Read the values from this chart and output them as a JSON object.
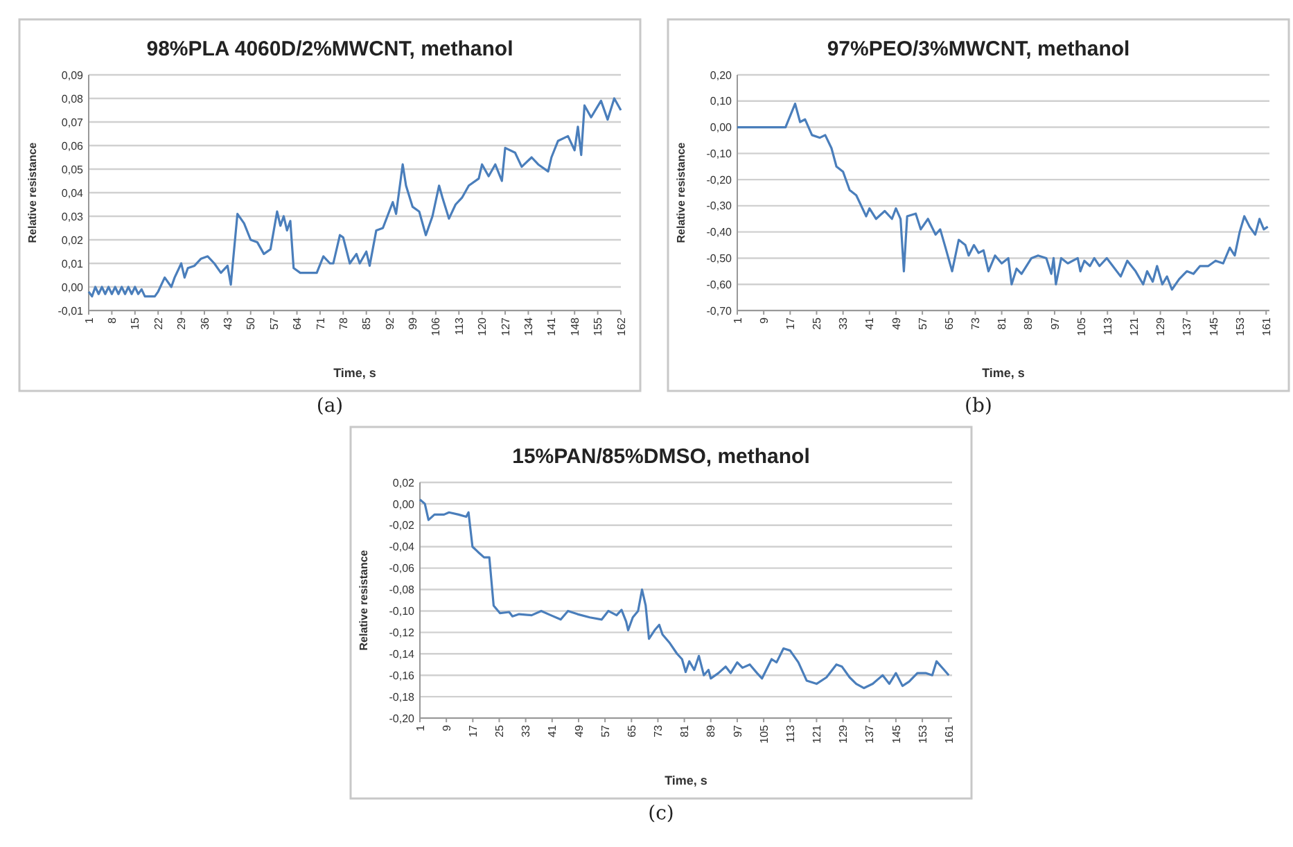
{
  "chart_data": [
    {
      "type": "line",
      "title": "98%PLA 4060D/2%MWCNT, methanol",
      "xlabel": "Time, s",
      "ylabel": "Relative resistance",
      "annotations": [
        "(a)"
      ],
      "grid": "y",
      "marker": "none",
      "line_style": "solid",
      "xlim": [
        1,
        162
      ],
      "xticks": [
        1,
        8,
        15,
        22,
        29,
        36,
        43,
        50,
        57,
        64,
        71,
        78,
        85,
        92,
        99,
        106,
        113,
        120,
        127,
        134,
        141,
        148,
        155,
        162
      ],
      "ylim": [
        -0.01,
        0.09
      ],
      "yticks": [
        {
          "value": -0.01,
          "label": "-0,01"
        },
        {
          "value": 0,
          "label": "0,00"
        },
        {
          "value": 0.01,
          "label": "0,01"
        },
        {
          "value": 0.02,
          "label": "0,02"
        },
        {
          "value": 0.03,
          "label": "0,03"
        },
        {
          "value": 0.04,
          "label": "0,04"
        },
        {
          "value": 0.05,
          "label": "0,05"
        },
        {
          "value": 0.06,
          "label": "0,06"
        },
        {
          "value": 0.07,
          "label": "0,07"
        },
        {
          "value": 0.08,
          "label": "0,08"
        },
        {
          "value": 0.09,
          "label": "0,09"
        }
      ],
      "series": [
        {
          "color": "#4a7ebb",
          "x": [
            1,
            2,
            3,
            4,
            5,
            6,
            7,
            8,
            9,
            10,
            11,
            12,
            13,
            14,
            15,
            16,
            17,
            18,
            19,
            20,
            21,
            22,
            24,
            26,
            27,
            29,
            30,
            31,
            33,
            35,
            37,
            39,
            41,
            43,
            44,
            46,
            48,
            50,
            52,
            54,
            56,
            58,
            59,
            60,
            61,
            62,
            63,
            65,
            67,
            70,
            72,
            74,
            75,
            77,
            78,
            80,
            82,
            83,
            85,
            86,
            88,
            90,
            93,
            94,
            96,
            97,
            99,
            101,
            103,
            105,
            107,
            108,
            110,
            112,
            114,
            116,
            119,
            120,
            122,
            124,
            126,
            127,
            130,
            132,
            135,
            137,
            140,
            141,
            143,
            146,
            148,
            149,
            150,
            151,
            153,
            156,
            158,
            160,
            162
          ],
          "values": [
            -0.002,
            -0.004,
            0,
            -0.003,
            0,
            -0.003,
            0,
            -0.003,
            0,
            -0.003,
            0,
            -0.003,
            0,
            -0.003,
            0,
            -0.003,
            -0.001,
            -0.004,
            -0.004,
            -0.004,
            -0.004,
            -0.002,
            0.004,
            0,
            0.004,
            0.01,
            0.004,
            0.008,
            0.009,
            0.012,
            0.013,
            0.01,
            0.006,
            0.009,
            0.001,
            0.031,
            0.027,
            0.02,
            0.019,
            0.014,
            0.016,
            0.032,
            0.026,
            0.03,
            0.024,
            0.028,
            0.008,
            0.006,
            0.006,
            0.006,
            0.013,
            0.01,
            0.01,
            0.022,
            0.021,
            0.01,
            0.014,
            0.01,
            0.015,
            0.009,
            0.024,
            0.025,
            0.036,
            0.031,
            0.052,
            0.043,
            0.034,
            0.032,
            0.022,
            0.03,
            0.043,
            0.038,
            0.029,
            0.035,
            0.038,
            0.043,
            0.046,
            0.052,
            0.047,
            0.052,
            0.045,
            0.059,
            0.057,
            0.051,
            0.055,
            0.052,
            0.049,
            0.055,
            0.062,
            0.064,
            0.058,
            0.068,
            0.056,
            0.077,
            0.072,
            0.079,
            0.071,
            0.08,
            0.075
          ]
        }
      ]
    },
    {
      "type": "line",
      "title": "97%PEO/3%MWCNT, methanol",
      "xlabel": "Time, s",
      "ylabel": "Relative resistance",
      "annotations": [
        "(b)"
      ],
      "grid": "y",
      "marker": "none",
      "line_style": "solid",
      "xlim": [
        1,
        162
      ],
      "xticks": [
        1,
        9,
        17,
        25,
        33,
        41,
        49,
        57,
        65,
        73,
        81,
        89,
        97,
        105,
        113,
        121,
        129,
        137,
        145,
        153,
        161
      ],
      "ylim": [
        -0.7,
        0.2
      ],
      "yticks": [
        {
          "value": -0.7,
          "label": "-0,70"
        },
        {
          "value": -0.6,
          "label": "-0,60"
        },
        {
          "value": -0.5,
          "label": "-0,50"
        },
        {
          "value": -0.4,
          "label": "-0,40"
        },
        {
          "value": -0.3,
          "label": "-0,30"
        },
        {
          "value": -0.2,
          "label": "-0,20"
        },
        {
          "value": -0.1,
          "label": "-0,10"
        },
        {
          "value": 0,
          "label": "0,00"
        },
        {
          "value": 0.1,
          "label": "0,10"
        },
        {
          "value": 0.2,
          "label": "0,20"
        }
      ],
      "series": [
        {
          "color": "#4a7ebb",
          "x": [
            1,
            15.6,
            18.5,
            20,
            21.5,
            23.6,
            26,
            27.6,
            29.5,
            31,
            33,
            35,
            37,
            40,
            41,
            43,
            45.6,
            47.8,
            49,
            50.4,
            51.4,
            52.4,
            55,
            56.5,
            58.7,
            61,
            62.4,
            64,
            66,
            68,
            70,
            71,
            72.6,
            74,
            75.5,
            77,
            79,
            81,
            83,
            84,
            85.5,
            87,
            90,
            92,
            94.5,
            96,
            96.7,
            97.4,
            99,
            101,
            104,
            104.8,
            106,
            107.7,
            109,
            110.6,
            112.8,
            114,
            117,
            119,
            121.5,
            123.8,
            125,
            126.7,
            128,
            129.6,
            131,
            132.5,
            134.7,
            137,
            139,
            141,
            143.5,
            145.7,
            148,
            150,
            151.5,
            153,
            154.4,
            156,
            157.7,
            159,
            160.3,
            161.5
          ],
          "values": [
            0,
            0,
            0.09,
            0.02,
            0.03,
            -0.03,
            -0.04,
            -0.03,
            -0.08,
            -0.15,
            -0.17,
            -0.24,
            -0.26,
            -0.34,
            -0.31,
            -0.35,
            -0.32,
            -0.35,
            -0.31,
            -0.35,
            -0.55,
            -0.34,
            -0.33,
            -0.39,
            -0.35,
            -0.41,
            -0.39,
            -0.46,
            -0.55,
            -0.43,
            -0.45,
            -0.49,
            -0.45,
            -0.48,
            -0.47,
            -0.55,
            -0.49,
            -0.52,
            -0.5,
            -0.6,
            -0.54,
            -0.56,
            -0.5,
            -0.49,
            -0.5,
            -0.56,
            -0.5,
            -0.6,
            -0.5,
            -0.52,
            -0.5,
            -0.55,
            -0.51,
            -0.53,
            -0.5,
            -0.53,
            -0.5,
            -0.52,
            -0.57,
            -0.51,
            -0.55,
            -0.6,
            -0.55,
            -0.59,
            -0.53,
            -0.6,
            -0.57,
            -0.62,
            -0.58,
            -0.55,
            -0.56,
            -0.53,
            -0.53,
            -0.51,
            -0.52,
            -0.46,
            -0.49,
            -0.4,
            -0.34,
            -0.38,
            -0.41,
            -0.35,
            -0.39,
            -0.38
          ]
        }
      ]
    },
    {
      "type": "line",
      "title": "15%PAN/85%DMSO, methanol",
      "xlabel": "Time, s",
      "ylabel": "Relative resistance",
      "annotations": [
        "(c)"
      ],
      "grid": "y",
      "marker": "none",
      "line_style": "solid",
      "xlim": [
        1,
        162
      ],
      "xticks": [
        1,
        9,
        17,
        25,
        33,
        41,
        49,
        57,
        65,
        73,
        81,
        89,
        97,
        105,
        113,
        121,
        129,
        137,
        145,
        153,
        161
      ],
      "ylim": [
        -0.2,
        0.02
      ],
      "yticks": [
        {
          "value": -0.2,
          "label": "-0,20"
        },
        {
          "value": -0.18,
          "label": "-0,18"
        },
        {
          "value": -0.16,
          "label": "-0,16"
        },
        {
          "value": -0.14,
          "label": "-0,14"
        },
        {
          "value": -0.12,
          "label": "-0,12"
        },
        {
          "value": -0.1,
          "label": "-0,10"
        },
        {
          "value": -0.08,
          "label": "-0,08"
        },
        {
          "value": -0.06,
          "label": "-0,06"
        },
        {
          "value": -0.04,
          "label": "-0,04"
        },
        {
          "value": -0.02,
          "label": "-0,02"
        },
        {
          "value": 0,
          "label": "0,00"
        },
        {
          "value": 0.02,
          "label": "0,02"
        }
      ],
      "series": [
        {
          "color": "#4a7ebb",
          "x": [
            1,
            2.5,
            3.6,
            5.4,
            8.3,
            9.8,
            12.7,
            15,
            15.7,
            16.9,
            18.6,
            20.4,
            22,
            23.3,
            25.2,
            28,
            29,
            31,
            34.8,
            37.7,
            40.6,
            43.6,
            45.8,
            48.7,
            52.4,
            56,
            58,
            60.5,
            62,
            63.4,
            64,
            65.4,
            67,
            68.2,
            69.3,
            70.3,
            72,
            73.4,
            74.4,
            76.6,
            78.8,
            80.3,
            81.4,
            82.5,
            84,
            85.4,
            86.9,
            88.3,
            89,
            91.3,
            93.5,
            95,
            97,
            98.6,
            100.8,
            103,
            104.5,
            107.4,
            108.9,
            111,
            113,
            115.5,
            118,
            121,
            124,
            127,
            128.7,
            131,
            133,
            135.3,
            138,
            141,
            143,
            145,
            147,
            149,
            151.5,
            154,
            156,
            157.3,
            159.6,
            161
          ],
          "values": [
            0.004,
            0,
            -0.015,
            -0.01,
            -0.01,
            -0.008,
            -0.01,
            -0.012,
            -0.008,
            -0.04,
            -0.045,
            -0.05,
            -0.05,
            -0.095,
            -0.102,
            -0.101,
            -0.105,
            -0.103,
            -0.104,
            -0.1,
            -0.104,
            -0.108,
            -0.1,
            -0.103,
            -0.106,
            -0.108,
            -0.1,
            -0.104,
            -0.099,
            -0.11,
            -0.118,
            -0.106,
            -0.1,
            -0.08,
            -0.095,
            -0.126,
            -0.118,
            -0.113,
            -0.122,
            -0.13,
            -0.14,
            -0.145,
            -0.157,
            -0.147,
            -0.155,
            -0.142,
            -0.16,
            -0.155,
            -0.163,
            -0.158,
            -0.152,
            -0.158,
            -0.148,
            -0.153,
            -0.15,
            -0.158,
            -0.163,
            -0.145,
            -0.148,
            -0.135,
            -0.137,
            -0.148,
            -0.165,
            -0.168,
            -0.162,
            -0.15,
            -0.152,
            -0.162,
            -0.168,
            -0.172,
            -0.168,
            -0.16,
            -0.168,
            -0.158,
            -0.17,
            -0.166,
            -0.158,
            -0.158,
            -0.16,
            -0.147,
            -0.155,
            -0.16
          ]
        }
      ]
    }
  ]
}
